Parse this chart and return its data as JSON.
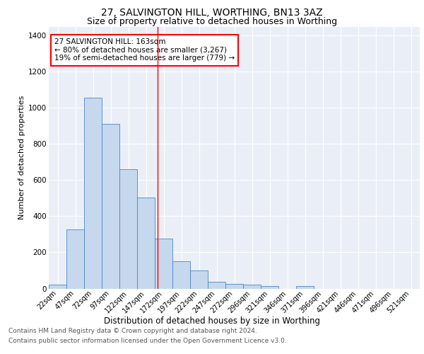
{
  "title1": "27, SALVINGTON HILL, WORTHING, BN13 3AZ",
  "title2": "Size of property relative to detached houses in Worthing",
  "xlabel": "Distribution of detached houses by size in Worthing",
  "ylabel": "Number of detached properties",
  "bar_categories": [
    "22sqm",
    "47sqm",
    "72sqm",
    "97sqm",
    "122sqm",
    "147sqm",
    "172sqm",
    "197sqm",
    "222sqm",
    "247sqm",
    "272sqm",
    "296sqm",
    "321sqm",
    "346sqm",
    "371sqm",
    "396sqm",
    "421sqm",
    "446sqm",
    "471sqm",
    "496sqm",
    "521sqm"
  ],
  "bar_values": [
    22,
    328,
    1055,
    910,
    662,
    503,
    278,
    150,
    100,
    37,
    25,
    22,
    15,
    0,
    12,
    0,
    0,
    0,
    0,
    0,
    0
  ],
  "bar_color": "#c5d8ed",
  "bar_edge_color": "#4a86c8",
  "red_line_x": 5.64,
  "annotation_text": "27 SALVINGTON HILL: 163sqm\n← 80% of detached houses are smaller (3,267)\n19% of semi-detached houses are larger (779) →",
  "ylim": [
    0,
    1450
  ],
  "yticks": [
    0,
    200,
    400,
    600,
    800,
    1000,
    1200,
    1400
  ],
  "footer1": "Contains HM Land Registry data © Crown copyright and database right 2024.",
  "footer2": "Contains public sector information licensed under the Open Government Licence v3.0.",
  "background_color": "#eaeff7",
  "grid_color": "#ffffff",
  "title1_fontsize": 10,
  "title2_fontsize": 9,
  "ylabel_fontsize": 8,
  "xlabel_fontsize": 8.5,
  "annot_fontsize": 7.5,
  "tick_fontsize": 7,
  "footer_fontsize": 6.5
}
